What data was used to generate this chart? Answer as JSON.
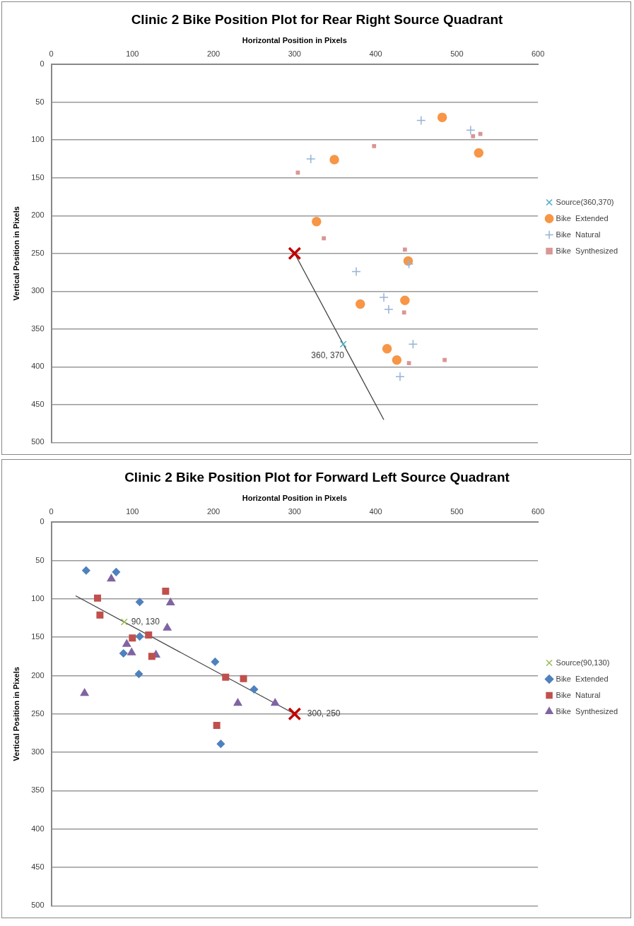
{
  "chart_data": [
    {
      "type": "scatter",
      "title": "Clinic 2 Bike Position Plot for Rear Right Source Quadrant",
      "xlabel": "Horizontal Position in Pixels",
      "ylabel": "Vertical Position in Pixels",
      "xlim": [
        0,
        600
      ],
      "xticks": [
        0,
        100,
        200,
        300,
        400,
        500,
        600
      ],
      "ylim": [
        500,
        0
      ],
      "yticks": [
        0,
        50,
        100,
        150,
        200,
        250,
        300,
        350,
        400,
        450,
        500
      ],
      "grid": "y",
      "legend": "right",
      "annotations": [
        {
          "text": "360, 370",
          "x": 360,
          "y": 370
        }
      ],
      "series": [
        {
          "name": "Source(360,370)",
          "type": "scatter",
          "marker": "x",
          "color": "#4bacc6",
          "x": [
            360
          ],
          "values": [
            370
          ]
        },
        {
          "name": "Bike  Extended",
          "type": "scatter",
          "marker": "circle",
          "color": "#f79646",
          "x": [
            482,
            527,
            349,
            327,
            440,
            381,
            436,
            414,
            426
          ],
          "values": [
            70,
            117,
            126,
            208,
            260,
            317,
            312,
            376,
            391
          ]
        },
        {
          "name": "Bike  Natural",
          "type": "scatter",
          "marker": "cross",
          "color": "#95b3d7",
          "x": [
            456,
            517,
            320,
            441,
            376,
            410,
            416,
            446,
            430
          ],
          "values": [
            74,
            87,
            125,
            264,
            274,
            308,
            324,
            370,
            413
          ]
        },
        {
          "name": "Bike  Synthesized",
          "type": "scatter",
          "marker": "square",
          "color": "#d99694",
          "x": [
            520,
            529,
            398,
            304,
            336,
            436,
            435,
            441,
            485
          ],
          "values": [
            95,
            92,
            108,
            143,
            230,
            245,
            328,
            395,
            391
          ]
        },
        {
          "type": "scatter",
          "marker": "x",
          "color": "#c00000",
          "x": [
            300
          ],
          "values": [
            250
          ]
        },
        {
          "type": "line",
          "marker": "none",
          "color": "#404040",
          "x": [
            300,
            410
          ],
          "values": [
            250,
            470
          ]
        }
      ]
    },
    {
      "type": "scatter",
      "title": "Clinic 2 Bike Position Plot for Forward Left Source Quadrant",
      "xlabel": "Horizontal Position in Pixels",
      "ylabel": "Vertical Position in Pixels",
      "xlim": [
        0,
        600
      ],
      "xticks": [
        0,
        100,
        200,
        300,
        400,
        500,
        600
      ],
      "ylim": [
        500,
        0
      ],
      "yticks": [
        0,
        50,
        100,
        150,
        200,
        250,
        300,
        350,
        400,
        450,
        500
      ],
      "grid": "y",
      "legend": "right",
      "annotations": [
        {
          "text": "90, 130",
          "x": 90,
          "y": 130
        },
        {
          "text": "300, 250",
          "x": 300,
          "y": 250
        }
      ],
      "series": [
        {
          "name": "Source(90,130)",
          "type": "scatter",
          "marker": "x",
          "color": "#9bbb59",
          "x": [
            90
          ],
          "values": [
            130
          ]
        },
        {
          "name": "Bike  Extended",
          "type": "scatter",
          "marker": "diamond",
          "color": "#4f81bd",
          "x": [
            43,
            80,
            109,
            109,
            89,
            108,
            202,
            250,
            209
          ],
          "values": [
            63,
            65,
            104,
            149,
            171,
            198,
            182,
            218,
            289
          ]
        },
        {
          "name": "Bike  Natural",
          "type": "scatter",
          "marker": "square",
          "color": "#c0504d",
          "x": [
            57,
            60,
            141,
            120,
            100,
            124,
            215,
            237,
            204
          ],
          "values": [
            99,
            121,
            90,
            147,
            151,
            175,
            202,
            204,
            265
          ]
        },
        {
          "name": "Bike  Synthesized",
          "type": "scatter",
          "marker": "triangle",
          "color": "#8064a2",
          "x": [
            74,
            147,
            143,
            93,
            99,
            129,
            41,
            230,
            276
          ],
          "values": [
            74,
            105,
            138,
            159,
            170,
            173,
            223,
            236,
            236
          ]
        },
        {
          "type": "scatter",
          "marker": "x",
          "color": "#c00000",
          "x": [
            300
          ],
          "values": [
            250
          ]
        },
        {
          "type": "line",
          "marker": "none",
          "color": "#404040",
          "x": [
            30,
            300
          ],
          "values": [
            96,
            250
          ]
        }
      ]
    }
  ]
}
